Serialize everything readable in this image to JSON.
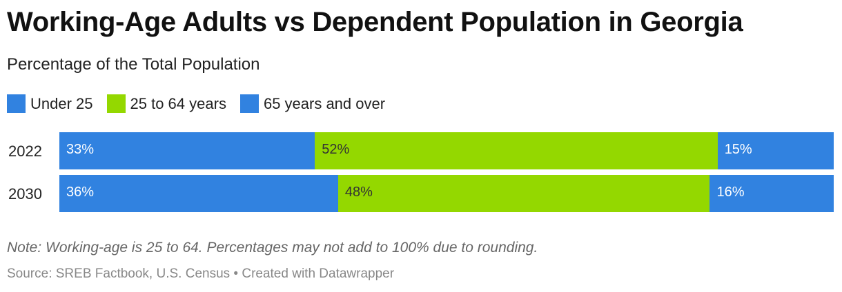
{
  "header": {
    "title": "Working-Age Adults vs Dependent Population in Georgia",
    "subtitle": "Percentage of the Total Population"
  },
  "legend": [
    {
      "label": "Under 25",
      "color": "#3182e0"
    },
    {
      "label": "25 to 64 years",
      "color": "#94d800"
    },
    {
      "label": "65 years and over",
      "color": "#3182e0"
    }
  ],
  "chart_data": {
    "type": "bar",
    "orientation": "horizontal",
    "stacked": true,
    "categories": [
      "2022",
      "2030"
    ],
    "series": [
      {
        "name": "Under 25",
        "values": [
          33,
          36
        ],
        "labels": [
          "33%",
          "36%"
        ],
        "color": "#3182e0",
        "label_color": "#ffffff"
      },
      {
        "name": "25 to 64 years",
        "values": [
          52,
          48
        ],
        "labels": [
          "52%",
          "48%"
        ],
        "color": "#94d800",
        "label_color": "#333333"
      },
      {
        "name": "65 years and over",
        "values": [
          15,
          16
        ],
        "labels": [
          "15%",
          "16%"
        ],
        "color": "#3182e0",
        "label_color": "#ffffff"
      }
    ]
  },
  "footer": {
    "note": "Note: Working-age is 25 to 64. Percentages may not add to 100% due to rounding.",
    "source": "Source: SREB Factbook, U.S. Census • Created with Datawrapper"
  }
}
